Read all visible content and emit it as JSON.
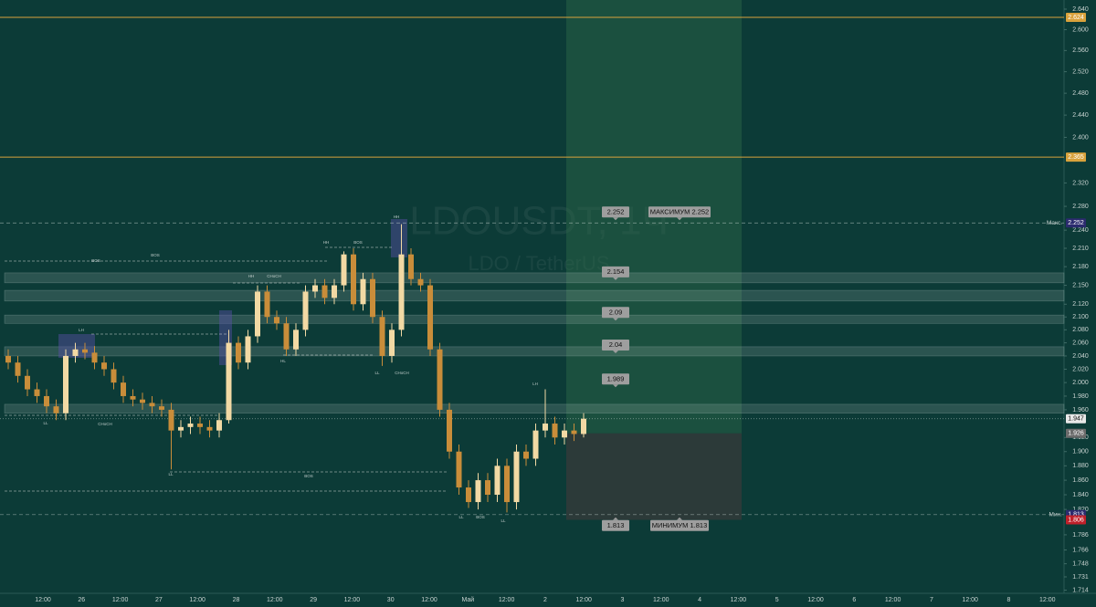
{
  "chart_data": {
    "type": "candlestick",
    "title": "LDOUSDT, 1Ч",
    "subtitle": "LDO / TetherUS",
    "log_scale": true,
    "grid": false,
    "up_color": "#f2d9a4",
    "down_color": "#c98d3a",
    "categories": [
      "12:00",
      "26",
      "12:00",
      "27",
      "12:00",
      "28",
      "12:00",
      "29",
      "12:00",
      "30",
      "12:00",
      "Май",
      "12:00",
      "2",
      "12:00",
      "3",
      "12:00",
      "4",
      "12:00",
      "5",
      "12:00",
      "6",
      "12:00",
      "7",
      "12:00",
      "8",
      "12:00"
    ],
    "open": [
      2.04,
      2.03,
      2.01,
      1.99,
      1.98,
      1.965,
      1.955,
      2.04,
      2.05,
      2.045,
      2.03,
      2.02,
      2.0,
      1.98,
      1.975,
      1.97,
      1.965,
      1.96,
      1.93,
      1.935,
      1.94,
      1.935,
      1.93,
      1.945,
      2.06,
      2.03,
      2.07,
      2.14,
      2.1,
      2.09,
      2.05,
      2.08,
      2.14,
      2.15,
      2.13,
      2.15,
      2.2,
      2.12,
      2.16,
      2.1,
      2.04,
      2.08,
      2.2,
      2.16,
      2.15,
      2.05,
      1.96,
      1.9,
      1.85,
      1.83,
      1.86,
      1.84,
      1.88,
      1.83,
      1.9,
      1.89,
      1.93,
      1.94,
      1.92,
      1.93,
      1.925
    ],
    "high": [
      2.05,
      2.04,
      2.02,
      2.0,
      1.99,
      1.975,
      2.05,
      2.06,
      2.06,
      2.055,
      2.04,
      2.03,
      2.01,
      1.99,
      1.985,
      1.98,
      1.975,
      1.97,
      1.945,
      1.95,
      1.95,
      1.945,
      1.955,
      2.08,
      2.07,
      2.08,
      2.15,
      2.15,
      2.11,
      2.1,
      2.09,
      2.15,
      2.16,
      2.16,
      2.16,
      2.205,
      2.21,
      2.17,
      2.17,
      2.11,
      2.09,
      2.25,
      2.21,
      2.17,
      2.16,
      2.06,
      1.97,
      1.91,
      1.86,
      1.87,
      1.87,
      1.89,
      1.89,
      1.91,
      1.91,
      1.94,
      1.99,
      1.95,
      1.94,
      1.94,
      1.955
    ],
    "low": [
      2.02,
      2.0,
      1.98,
      1.97,
      1.955,
      1.945,
      1.945,
      2.03,
      2.035,
      2.02,
      2.01,
      1.99,
      1.97,
      1.965,
      1.96,
      1.955,
      1.95,
      1.875,
      1.92,
      1.925,
      1.925,
      1.92,
      1.92,
      1.94,
      2.02,
      2.02,
      2.06,
      2.09,
      2.08,
      2.04,
      2.04,
      2.07,
      2.13,
      2.12,
      2.12,
      2.14,
      2.11,
      2.11,
      2.09,
      2.025,
      2.03,
      2.07,
      2.15,
      2.14,
      2.04,
      1.95,
      1.89,
      1.84,
      1.822,
      1.82,
      1.83,
      1.83,
      1.816,
      1.82,
      1.88,
      1.88,
      1.92,
      1.91,
      1.91,
      1.915,
      1.92
    ],
    "close": [
      2.03,
      2.01,
      1.99,
      1.98,
      1.965,
      1.955,
      2.04,
      2.05,
      2.045,
      2.03,
      2.02,
      2.0,
      1.98,
      1.975,
      1.97,
      1.965,
      1.96,
      1.93,
      1.935,
      1.94,
      1.935,
      1.93,
      1.945,
      2.06,
      2.03,
      2.07,
      2.14,
      2.1,
      2.09,
      2.05,
      2.08,
      2.14,
      2.15,
      2.13,
      2.15,
      2.2,
      2.12,
      2.16,
      2.1,
      2.04,
      2.08,
      2.2,
      2.16,
      2.15,
      2.05,
      1.96,
      1.9,
      1.85,
      1.83,
      1.86,
      1.84,
      1.88,
      1.83,
      1.9,
      1.89,
      1.93,
      1.94,
      1.92,
      1.93,
      1.925,
      1.947
    ],
    "ylim": [
      1.71,
      2.658
    ],
    "yticks": [
      {
        "value": 2.64,
        "label": "2.640"
      },
      {
        "value": 2.6,
        "label": "2.600"
      },
      {
        "value": 2.56,
        "label": "2.560"
      },
      {
        "value": 2.52,
        "label": "2.520"
      },
      {
        "value": 2.48,
        "label": "2.480"
      },
      {
        "value": 2.44,
        "label": "2.440"
      },
      {
        "value": 2.4,
        "label": "2.400"
      },
      {
        "value": 2.32,
        "label": "2.320"
      },
      {
        "value": 2.28,
        "label": "2.280"
      },
      {
        "value": 2.24,
        "label": "2.240"
      },
      {
        "value": 2.21,
        "label": "2.210"
      },
      {
        "value": 2.18,
        "label": "2.180"
      },
      {
        "value": 2.15,
        "label": "2.150"
      },
      {
        "value": 2.12,
        "label": "2.120"
      },
      {
        "value": 2.1,
        "label": "2.100"
      },
      {
        "value": 2.08,
        "label": "2.080"
      },
      {
        "value": 2.06,
        "label": "2.060"
      },
      {
        "value": 2.04,
        "label": "2.040"
      },
      {
        "value": 2.02,
        "label": "2.020"
      },
      {
        "value": 2.0,
        "label": "2.000"
      },
      {
        "value": 1.98,
        "label": "1.980"
      },
      {
        "value": 1.96,
        "label": "1.960"
      },
      {
        "value": 1.92,
        "label": "1.920"
      },
      {
        "value": 1.9,
        "label": "1.900"
      },
      {
        "value": 1.88,
        "label": "1.880"
      },
      {
        "value": 1.86,
        "label": "1.860"
      },
      {
        "value": 1.84,
        "label": "1.840"
      },
      {
        "value": 1.82,
        "label": "1.820"
      },
      {
        "value": 1.786,
        "label": "1.786"
      },
      {
        "value": 1.766,
        "label": "1.766"
      },
      {
        "value": 1.748,
        "label": "1.748"
      },
      {
        "value": 1.731,
        "label": "1.731"
      },
      {
        "value": 1.714,
        "label": "1.714"
      }
    ],
    "levels": [
      {
        "value": 2.624,
        "label": "2.624",
        "color": "#d9a23c",
        "style": "solid"
      },
      {
        "value": 2.365,
        "label": "2.365",
        "color": "#d9a23c",
        "style": "solid"
      },
      {
        "value": 2.252,
        "label": "2.252",
        "name": "Макс.",
        "color": "#2b2b6e",
        "style": "dashed"
      },
      {
        "value": 1.947,
        "label": "1.947",
        "color": "#e8e8e8",
        "style": "dotted"
      },
      {
        "value": 1.926,
        "label": "1.926",
        "color": "#6b6b6b",
        "style": "none"
      },
      {
        "value": 1.813,
        "label": "1.813",
        "name": "Мин.",
        "color": "#2b2b6e",
        "style": "dashed"
      },
      {
        "value": 1.806,
        "label": "1.806",
        "color": "#c0202a",
        "style": "none"
      }
    ],
    "zones": [
      [
        2.154,
        2.17
      ],
      [
        2.125,
        2.142
      ],
      [
        2.09,
        2.103
      ],
      [
        2.04,
        2.054
      ],
      [
        1.955,
        1.968
      ]
    ],
    "callouts": [
      {
        "value": 2.252,
        "label": "2.252"
      },
      {
        "value": 2.154,
        "label": "2.154"
      },
      {
        "value": 2.09,
        "label": "2.09"
      },
      {
        "value": 2.04,
        "label": "2.04"
      },
      {
        "value": 1.989,
        "label": "1.989"
      }
    ],
    "low_callout": {
      "value": 1.813,
      "label": "1.813"
    },
    "max_label": "МАКСИМУМ 2.252",
    "min_label": "МИНИМУМ 1.813",
    "position": {
      "entry": 1.926,
      "stop": 1.806
    },
    "annotations": [
      "BOS",
      "BOS",
      "HH",
      "BOS",
      "HH",
      "CHoCH",
      "HL",
      "LL",
      "CHoCH",
      "LL",
      "BOS",
      "HH",
      "CHoCH",
      "LL",
      "LL",
      "BOS",
      "LL",
      "LH",
      "LH"
    ]
  }
}
